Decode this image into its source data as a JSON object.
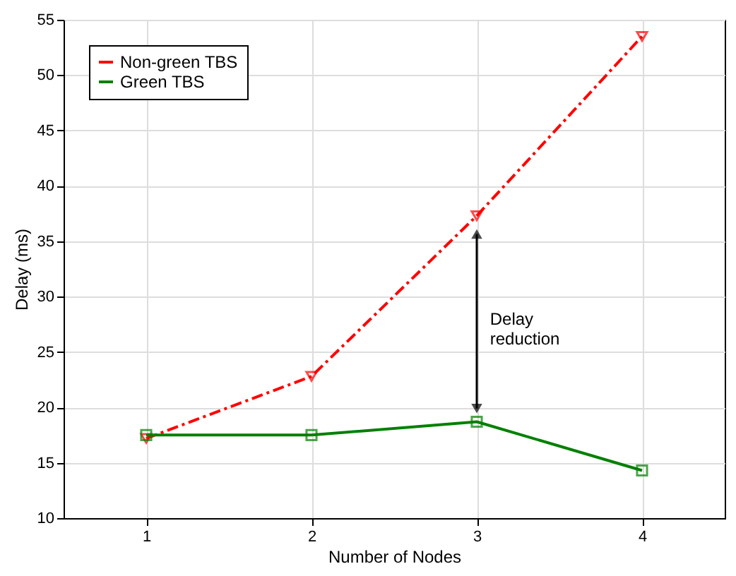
{
  "chart_data": {
    "type": "line",
    "xlabel": "Number of Nodes",
    "ylabel": "Delay (ms)",
    "x": [
      1,
      2,
      3,
      4
    ],
    "xlim": [
      0.5,
      4.5
    ],
    "xticks": [
      1,
      2,
      3,
      4
    ],
    "ylim": [
      10,
      55
    ],
    "yticks": [
      10,
      15,
      20,
      25,
      30,
      35,
      40,
      45,
      50,
      55
    ],
    "series": [
      {
        "name": "Non-green TBS",
        "color": "#ff0000",
        "values": [
          17.2,
          22.8,
          37.3,
          53.5
        ],
        "marker": "triangle",
        "line_style": "dashed"
      },
      {
        "name": "Green TBS",
        "color": "#008000",
        "values": [
          17.5,
          17.5,
          18.7,
          14.3
        ],
        "marker": "square",
        "line_style": "solid"
      }
    ],
    "annotations": [
      "Delay reduction"
    ],
    "grid": true,
    "legend": "top left"
  }
}
